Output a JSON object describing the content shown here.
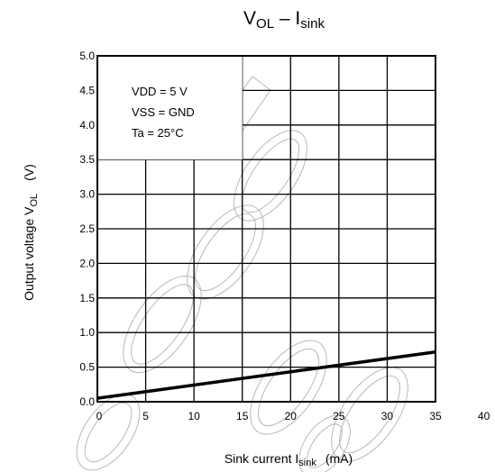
{
  "chart_data": {
    "type": "line",
    "title": {
      "main": "V",
      "main_sub": "OL",
      "sep": " – ",
      "tail": "I",
      "tail_sub": "sink"
    },
    "ylabel": {
      "text": "Output voltage   V",
      "sub": "OL",
      "unit": "(V)"
    },
    "xlabel": {
      "text": "Sink current   ",
      "sym": "I",
      "sub": "sink",
      "unit": "(mA)"
    },
    "xlim": [
      0,
      40
    ],
    "ylim": [
      0,
      5.0
    ],
    "x_ticks": [
      0,
      5,
      10,
      15,
      20,
      25,
      30,
      35,
      40
    ],
    "y_ticks": [
      0.0,
      0.5,
      1.0,
      1.5,
      2.0,
      2.5,
      3.0,
      3.5,
      4.0,
      4.5,
      5.0
    ],
    "x_tick_labels": [
      "0",
      "5",
      "10",
      "15",
      "20",
      "25",
      "30",
      "35",
      "40"
    ],
    "y_tick_labels": [
      "0.0",
      "0.5",
      "1.0",
      "1.5",
      "2.0",
      "2.5",
      "3.0",
      "3.5",
      "4.0",
      "4.5",
      "5.0"
    ],
    "grid": true,
    "conditions": [
      "VDD = 5 V",
      "VSS = GND",
      "Ta = 25°C"
    ],
    "series": [
      {
        "x": [
          0,
          35
        ],
        "y": [
          0.05,
          0.72
        ]
      }
    ],
    "watermark": "Discontinued",
    "colors": {
      "line": "#000000",
      "grid": "#000000",
      "watermark": "#b8b8b8"
    }
  }
}
